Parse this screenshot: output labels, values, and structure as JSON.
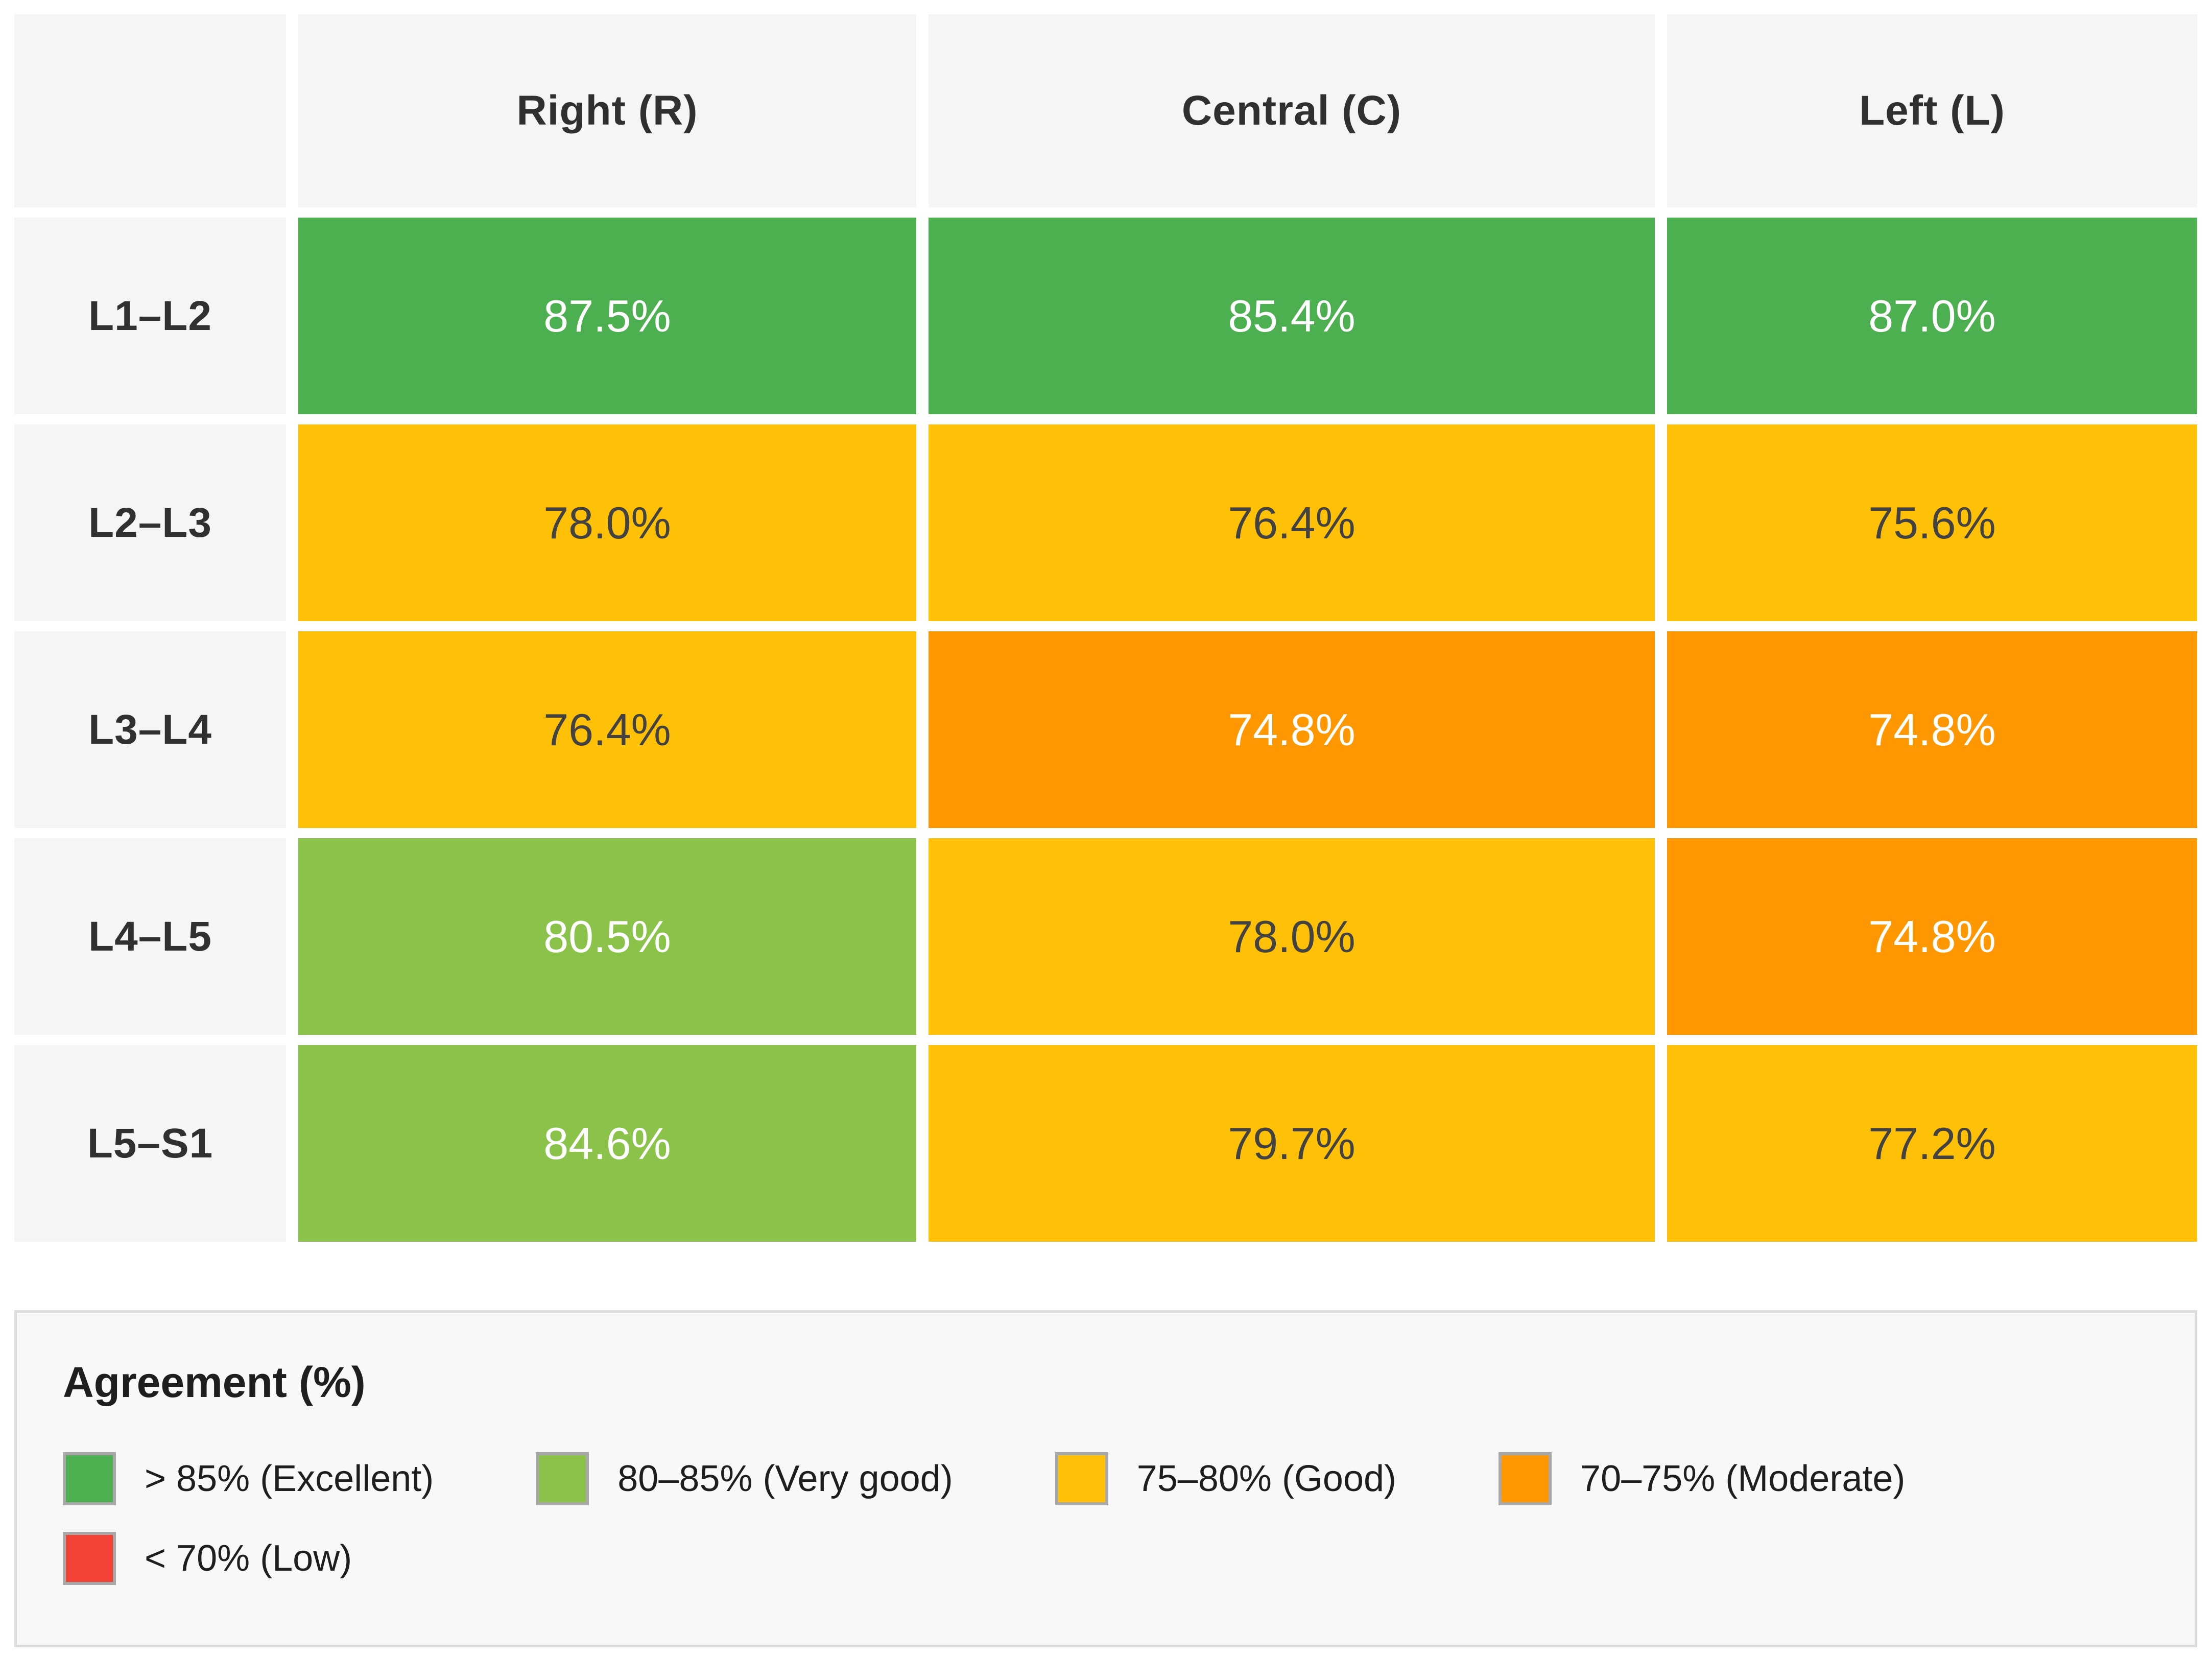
{
  "chart_data": {
    "type": "heatmap",
    "rows": [
      "L1–L2",
      "L2–L3",
      "L3–L4",
      "L4–L5",
      "L5–S1"
    ],
    "columns": [
      "Right (R)",
      "Central (C)",
      "Left (L)"
    ],
    "values": [
      [
        87.5,
        85.4,
        87.0
      ],
      [
        78.0,
        76.4,
        75.6
      ],
      [
        76.4,
        74.8,
        74.8
      ],
      [
        80.5,
        78.0,
        74.8
      ],
      [
        84.6,
        79.7,
        77.2
      ]
    ],
    "unit": "%",
    "legend_title": "Agreement (%)",
    "legend_bins": [
      "> 85% (Excellent)",
      "80–85% (Very good)",
      "75–80% (Good)",
      "70–75% (Moderate)",
      "< 70% (Low)"
    ],
    "legend_position": "bottom"
  },
  "bands": {
    "excellent": {
      "bg": "#4caf50",
      "text": "#ffffff"
    },
    "very_good": {
      "bg": "#8bc34a",
      "text": "#ffffff"
    },
    "good": {
      "bg": "#ffc107",
      "text": "#424242"
    },
    "moderate": {
      "bg": "#ff9800",
      "text": "#ffffff"
    },
    "low": {
      "bg": "#f44336",
      "text": "#ffffff"
    }
  },
  "table": {
    "columns": [
      "Right (R)",
      "Central (C)",
      "Left (L)"
    ],
    "rows": [
      {
        "label": "L1–L2",
        "cells": [
          {
            "value": "87.5%",
            "band": "excellent"
          },
          {
            "value": "85.4%",
            "band": "excellent"
          },
          {
            "value": "87.0%",
            "band": "excellent"
          }
        ]
      },
      {
        "label": "L2–L3",
        "cells": [
          {
            "value": "78.0%",
            "band": "good"
          },
          {
            "value": "76.4%",
            "band": "good"
          },
          {
            "value": "75.6%",
            "band": "good"
          }
        ]
      },
      {
        "label": "L3–L4",
        "cells": [
          {
            "value": "76.4%",
            "band": "good"
          },
          {
            "value": "74.8%",
            "band": "moderate"
          },
          {
            "value": "74.8%",
            "band": "moderate"
          }
        ]
      },
      {
        "label": "L4–L5",
        "cells": [
          {
            "value": "80.5%",
            "band": "very_good"
          },
          {
            "value": "78.0%",
            "band": "good"
          },
          {
            "value": "74.8%",
            "band": "moderate"
          }
        ]
      },
      {
        "label": "L5–S1",
        "cells": [
          {
            "value": "84.6%",
            "band": "very_good"
          },
          {
            "value": "79.7%",
            "band": "good"
          },
          {
            "value": "77.2%",
            "band": "good"
          }
        ]
      }
    ]
  },
  "legend": {
    "title": "Agreement (%)",
    "items": [
      {
        "label": "> 85% (Excellent)",
        "band": "excellent"
      },
      {
        "label": "80–85% (Very good)",
        "band": "very_good"
      },
      {
        "label": "75–80% (Good)",
        "band": "good"
      },
      {
        "label": "70–75% (Moderate)",
        "band": "moderate"
      },
      {
        "label": "< 70% (Low)",
        "band": "low"
      }
    ]
  },
  "styles": {
    "header_bg": "#f5f5f5",
    "header_text": "#303030",
    "gap_color": "#ffffff",
    "legend_bg": "#f8f8f8",
    "legend_border": "#dcdcdc",
    "swatch_border": "#a9a9a9"
  }
}
